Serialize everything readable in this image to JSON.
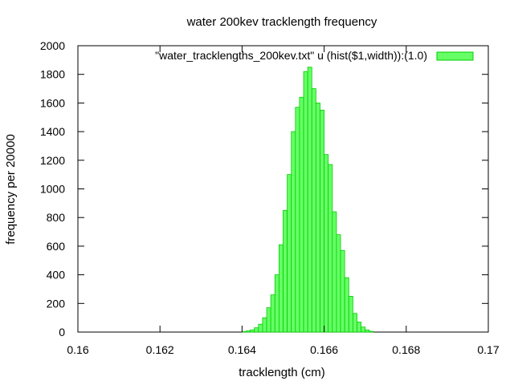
{
  "chart_data": {
    "type": "bar",
    "title": "water 200kev tracklength frequency",
    "xlabel": "tracklength (cm)",
    "ylabel": "frequency per 20000",
    "xlim": [
      0.16,
      0.17
    ],
    "ylim": [
      0,
      2000
    ],
    "xticks": [
      "0.16",
      "0.162",
      "0.164",
      "0.166",
      "0.168",
      "0.17"
    ],
    "yticks": [
      "0",
      "200",
      "400",
      "600",
      "800",
      "1000",
      "1200",
      "1400",
      "1600",
      "1800",
      "2000"
    ],
    "grid": false,
    "legend_position": "top-right",
    "bin_width": 0.0001,
    "series": [
      {
        "name": "\"water_tracklengths_200kev.txt\" u (hist($1,width)):(1.0)",
        "color": "#66ff66",
        "edge_color": "#00cc00",
        "bin_starts": [
          0.164,
          0.1641,
          0.1642,
          0.1643,
          0.1644,
          0.1645,
          0.1646,
          0.1647,
          0.1648,
          0.1649,
          0.165,
          0.1651,
          0.1652,
          0.1653,
          0.1654,
          0.1655,
          0.1656,
          0.1657,
          0.1658,
          0.1659,
          0.166,
          0.1661,
          0.1662,
          0.1663,
          0.1664,
          0.1665,
          0.1666,
          0.1667,
          0.1668,
          0.1669,
          0.167,
          0.1671
        ],
        "values": [
          3,
          8,
          15,
          30,
          55,
          100,
          170,
          260,
          400,
          610,
          850,
          1100,
          1400,
          1570,
          1640,
          1820,
          1850,
          1700,
          1600,
          1550,
          1240,
          1170,
          840,
          680,
          570,
          380,
          250,
          130,
          70,
          35,
          15,
          5
        ]
      }
    ]
  }
}
